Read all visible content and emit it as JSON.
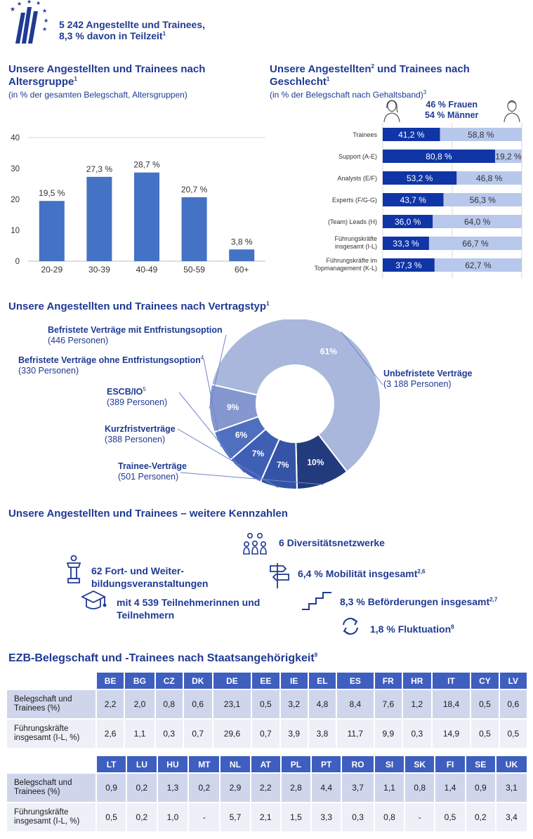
{
  "header": {
    "line1": "5 242 Angestellte und Trainees,",
    "line2": "8,3 % davon in Teilzeit",
    "sup": "1"
  },
  "age": {
    "title": "Unsere Angestellten und Trainees nach Altersgruppe",
    "title_sup": "1",
    "subtitle": "(in % der gesamten Belegschaft, Altersgruppen)"
  },
  "gender": {
    "title": "Unsere Angestellten",
    "title_sup1": "2",
    "title_mid": " und Trainees nach Geschlecht",
    "title_sup2": "1",
    "subtitle": "(in % der Belegschaft nach Gehaltsband)",
    "subtitle_sup": "3",
    "women": "46 % Frauen",
    "men": "54 % Männer"
  },
  "contract": {
    "title": "Unsere Angestellten und Trainees nach Vertragstyp",
    "title_sup": "1"
  },
  "kpis": {
    "title": "Unsere Angestellten und Trainees – weitere Kennzahlen",
    "diversity": "6 Diversitätsnetzwerke",
    "training_line1": "62 Fort- und Weiter-",
    "training_line2": "bildungsveranstaltungen",
    "mobility": "6,4 % Mobilität insgesamt",
    "mobility_sup": "2,6",
    "participants_line1": "mit 4 539 Teilnehmerinnen und",
    "participants_line2": "Teilnehmern",
    "promotions": "8,3 % Beförderungen insgesamt",
    "promotions_sup": "2,7",
    "fluctuation": "1,8 % Fluktuation",
    "fluctuation_sup": "8"
  },
  "nationality": {
    "title": "EZB-Belegschaft und -Trainees nach Staatsangehörigkeit",
    "title_sup": "9",
    "row_label_staff": "Belegschaft und Trainees (%)",
    "row_label_mgmt": "Führungskräfte insgesamt (I-L, %)",
    "table1": {
      "countries": [
        "BE",
        "BG",
        "CZ",
        "DK",
        "DE",
        "EE",
        "IE",
        "EL",
        "ES",
        "FR",
        "HR",
        "IT",
        "CY",
        "LV"
      ],
      "staff": [
        "2,2",
        "2,0",
        "0,8",
        "0,6",
        "23,1",
        "0,5",
        "3,2",
        "4,8",
        "8,4",
        "7,6",
        "1,2",
        "18,4",
        "0,5",
        "0,6"
      ],
      "mgmt": [
        "2,6",
        "1,1",
        "0,3",
        "0,7",
        "29,6",
        "0,7",
        "3,9",
        "3,8",
        "11,7",
        "9,9",
        "0,3",
        "14,9",
        "0,5",
        "0,5"
      ]
    },
    "table2": {
      "countries": [
        "LT",
        "LU",
        "HU",
        "MT",
        "NL",
        "AT",
        "PL",
        "PT",
        "RO",
        "SI",
        "SK",
        "FI",
        "SE",
        "UK"
      ],
      "staff": [
        "0,9",
        "0,2",
        "1,3",
        "0,2",
        "2,9",
        "2,2",
        "2,8",
        "4,4",
        "3,7",
        "1,1",
        "0,8",
        "1,4",
        "0,9",
        "3,1"
      ],
      "mgmt": [
        "0,5",
        "0,2",
        "1,0",
        "-",
        "5,7",
        "2,1",
        "1,5",
        "3,3",
        "0,3",
        "0,8",
        "-",
        "0,5",
        "0,2",
        "3,4"
      ]
    }
  },
  "chart_data": [
    {
      "type": "bar",
      "categories": [
        "20-29",
        "30-39",
        "40-49",
        "50-59",
        "60+"
      ],
      "values": [
        19.5,
        27.3,
        28.7,
        20.7,
        3.8
      ],
      "value_labels": [
        "19,5 %",
        "27,3 %",
        "28,7 %",
        "20,7 %",
        "3,8 %"
      ],
      "yticks": [
        "0",
        "10",
        "20",
        "30",
        "40"
      ],
      "ylim": [
        0,
        40
      ],
      "color": "#4472c4"
    },
    {
      "type": "bar",
      "orientation": "horizontal-stacked",
      "categories": [
        "Trainees",
        "Support (A-E)",
        "Analysts (E/F)",
        "Experts (F/G-G)",
        "(Team) Leads (H)",
        "Führungskräfte insgesamt (I-L)",
        "Führungskräfte im Topmanagement (K-L)"
      ],
      "series": [
        {
          "values": [
            41.2,
            80.8,
            53.2,
            43.7,
            36.0,
            33.3,
            37.3
          ],
          "labels": [
            "41,2 %",
            "80,8 %",
            "53,2 %",
            "43,7 %",
            "36,0 %",
            "33,3 %",
            "37,3 %"
          ],
          "color": "#0f35a6"
        },
        {
          "values": [
            58.8,
            19.2,
            46.8,
            56.3,
            64.0,
            66.7,
            62.7
          ],
          "labels": [
            "58,8 %",
            "19,2 %",
            "46,8 %",
            "56,3 %",
            "64,0 %",
            "66,7 %",
            "62,7 %"
          ],
          "color": "#b8c8ec"
        }
      ]
    },
    {
      "type": "pie",
      "slices": [
        {
          "label": "Unbefristete Verträge",
          "detail": "(3 188 Personen)",
          "value": 61,
          "pct": "61%",
          "color": "#a9b7dd"
        },
        {
          "label": "Trainee-Verträge",
          "detail": "(501 Personen)",
          "value": 10,
          "pct": "10%",
          "color": "#223b7d"
        },
        {
          "label": "Kurzfristverträge",
          "detail": "(388 Personen)",
          "value": 7,
          "pct": "7%",
          "color": "#3554a8"
        },
        {
          "label": "ESCB/IO",
          "label_sup": "5",
          "detail": "(389 Personen)",
          "value": 7,
          "pct": "7%",
          "color": "#3f5fb4"
        },
        {
          "label": "Befristete Verträge ohne Entfristungsoption",
          "label_sup": "4",
          "detail": "(330 Personen)",
          "value": 6,
          "pct": "6%",
          "color": "#4f6fbf"
        },
        {
          "label": "Befristete Verträge mit Entfristungsoption",
          "detail": "(446 Personen)",
          "value": 9,
          "pct": "9%",
          "color": "#8497cf"
        }
      ]
    }
  ]
}
